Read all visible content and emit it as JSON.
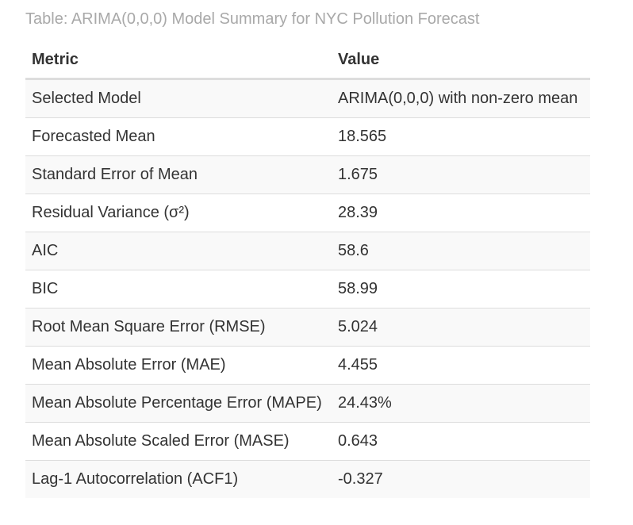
{
  "caption": "Table: ARIMA(0,0,0) Model Summary for NYC Pollution Forecast",
  "table": {
    "headers": [
      "Metric",
      "Value"
    ],
    "rows": [
      {
        "metric": "Selected Model",
        "value": "ARIMA(0,0,0) with non-zero mean"
      },
      {
        "metric": "Forecasted Mean",
        "value": "18.565"
      },
      {
        "metric": "Standard Error of Mean",
        "value": "1.675"
      },
      {
        "metric": "Residual Variance (σ²)",
        "value": "28.39"
      },
      {
        "metric": "AIC",
        "value": "58.6"
      },
      {
        "metric": "BIC",
        "value": "58.99"
      },
      {
        "metric": "Root Mean Square Error (RMSE)",
        "value": "5.024"
      },
      {
        "metric": "Mean Absolute Error (MAE)",
        "value": "4.455"
      },
      {
        "metric": "Mean Absolute Percentage Error (MAPE)",
        "value": "24.43%"
      },
      {
        "metric": "Mean Absolute Scaled Error (MASE)",
        "value": "0.643"
      },
      {
        "metric": "Lag-1 Autocorrelation (ACF1)",
        "value": "-0.327"
      }
    ]
  }
}
